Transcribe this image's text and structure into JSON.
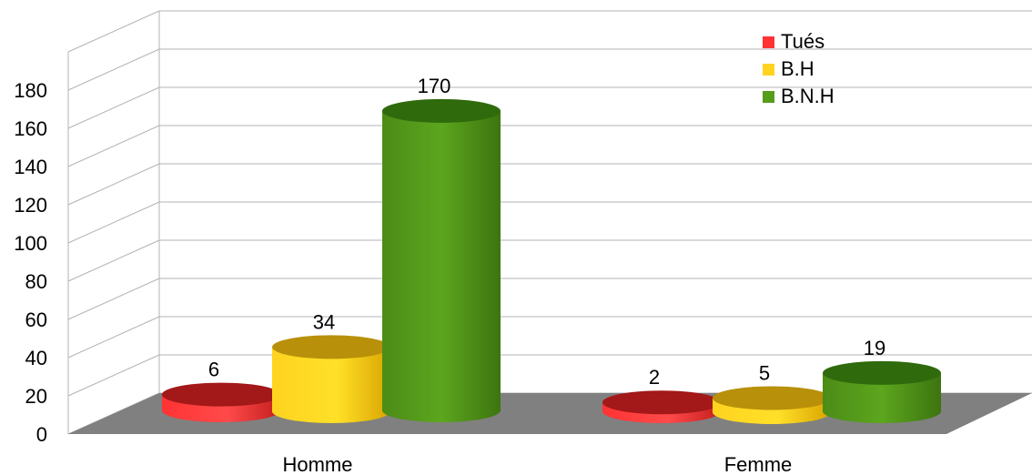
{
  "chart_data": {
    "type": "bar",
    "categories": [
      "Homme",
      "Femme"
    ],
    "series": [
      {
        "name": "Tués",
        "values": [
          6,
          2
        ],
        "color": "#ff3333"
      },
      {
        "name": "B.H",
        "values": [
          34,
          5
        ],
        "color": "#ffd320"
      },
      {
        "name": "B.N.H",
        "values": [
          170,
          19
        ],
        "color": "#579d1c"
      }
    ],
    "data_labels": [
      [
        "6",
        "2"
      ],
      [
        "34",
        "5"
      ],
      [
        "170",
        "19"
      ]
    ],
    "yticks": [
      0,
      20,
      40,
      60,
      80,
      100,
      120,
      140,
      160,
      180
    ],
    "ylim": [
      0,
      200
    ],
    "legend_position": "top-right",
    "grid": true,
    "style": "3d-cylinder"
  }
}
